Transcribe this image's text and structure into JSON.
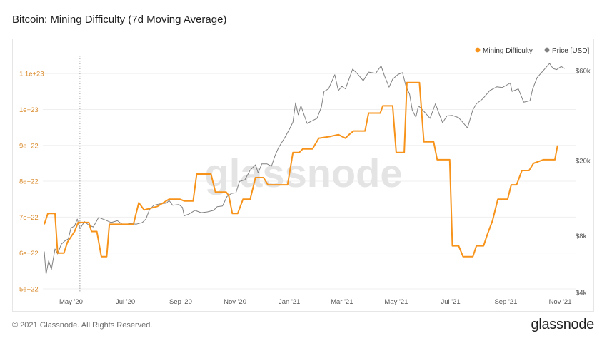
{
  "header": {
    "title": "Bitcoin: Mining Difficulty (7d Moving Average)"
  },
  "footer": {
    "copyright": "© 2021 Glassnode. All Rights Reserved.",
    "logo": "glassnode"
  },
  "watermark": "glassnode",
  "colors": {
    "difficulty": "#f7931a",
    "price": "#808080",
    "left_tick": "#d98a2a"
  },
  "chart_data": {
    "type": "line",
    "title": "Bitcoin: Mining Difficulty (7d Moving Average)",
    "legend": {
      "placement": "top-right",
      "entries": [
        "Mining Difficulty",
        "Price [USD]"
      ]
    },
    "x_axis": {
      "type": "date",
      "range": [
        "2020-04-01",
        "2021-11-15"
      ],
      "tick_labels": [
        {
          "date": "2020-05-01",
          "label": "May '20"
        },
        {
          "date": "2020-07-01",
          "label": "Jul '20"
        },
        {
          "date": "2020-09-01",
          "label": "Sep '20"
        },
        {
          "date": "2020-11-01",
          "label": "Nov '20"
        },
        {
          "date": "2021-01-01",
          "label": "Jan '21"
        },
        {
          "date": "2021-03-01",
          "label": "Mar '21"
        },
        {
          "date": "2021-05-01",
          "label": "May '21"
        },
        {
          "date": "2021-07-01",
          "label": "Jul '21"
        },
        {
          "date": "2021-09-01",
          "label": "Sep '21"
        },
        {
          "date": "2021-11-01",
          "label": "Nov '21"
        }
      ]
    },
    "y_left": {
      "scale": "linear",
      "range": [
        4.9e+22,
        1.15e+23
      ],
      "ticks": [
        5e+22,
        6e+22,
        7e+22,
        8e+22,
        9e+22,
        1e+23,
        1.1e+23
      ],
      "tick_labels": [
        "5e+22",
        "6e+22",
        "7e+22",
        "8e+22",
        "9e+22",
        "1e+23",
        "1.1e+23"
      ]
    },
    "y_right": {
      "scale": "log",
      "range": [
        4000,
        72000
      ],
      "ticks": [
        4000,
        8000,
        20000,
        60000
      ],
      "tick_labels": [
        "$4k",
        "$8k",
        "$20k",
        "$60k"
      ]
    },
    "annotation": {
      "type": "vertical-dotted-line",
      "date": "2020-05-11"
    },
    "series": [
      {
        "name": "Mining Difficulty",
        "axis": "left",
        "step": true,
        "points": [
          [
            "2020-04-01",
            6.8e+22
          ],
          [
            "2020-04-05",
            7.1e+22
          ],
          [
            "2020-04-13",
            7.1e+22
          ],
          [
            "2020-04-16",
            6e+22
          ],
          [
            "2020-04-23",
            6e+22
          ],
          [
            "2020-04-27",
            6.3e+22
          ],
          [
            "2020-05-05",
            6.6e+22
          ],
          [
            "2020-05-09",
            6.85e+22
          ],
          [
            "2020-05-21",
            6.85e+22
          ],
          [
            "2020-05-24",
            6.6e+22
          ],
          [
            "2020-05-30",
            6.6e+22
          ],
          [
            "2020-06-04",
            5.9e+22
          ],
          [
            "2020-06-10",
            5.9e+22
          ],
          [
            "2020-06-13",
            6.8e+22
          ],
          [
            "2020-06-28",
            6.8e+22
          ],
          [
            "2020-07-01",
            6.8e+22
          ],
          [
            "2020-07-10",
            6.8e+22
          ],
          [
            "2020-07-16",
            7.4e+22
          ],
          [
            "2020-07-22",
            7.2e+22
          ],
          [
            "2020-08-06",
            7.3e+22
          ],
          [
            "2020-08-19",
            7.5e+22
          ],
          [
            "2020-08-31",
            7.5e+22
          ],
          [
            "2020-09-05",
            7.45e+22
          ],
          [
            "2020-09-15",
            7.45e+22
          ],
          [
            "2020-09-19",
            8.2e+22
          ],
          [
            "2020-10-05",
            8.2e+22
          ],
          [
            "2020-10-10",
            7.7e+22
          ],
          [
            "2020-10-22",
            7.7e+22
          ],
          [
            "2020-10-25",
            7.6e+22
          ],
          [
            "2020-10-29",
            7.1e+22
          ],
          [
            "2020-11-04",
            7.1e+22
          ],
          [
            "2020-11-10",
            7.5e+22
          ],
          [
            "2020-11-18",
            7.5e+22
          ],
          [
            "2020-11-24",
            8.1e+22
          ],
          [
            "2020-12-03",
            8.1e+22
          ],
          [
            "2020-12-08",
            7.9e+22
          ],
          [
            "2020-12-30",
            7.9e+22
          ],
          [
            "2021-01-05",
            8.8e+22
          ],
          [
            "2021-01-12",
            8.8e+22
          ],
          [
            "2021-01-16",
            8.9e+22
          ],
          [
            "2021-01-27",
            8.9e+22
          ],
          [
            "2021-02-03",
            9.2e+22
          ],
          [
            "2021-02-16",
            9.25e+22
          ],
          [
            "2021-02-25",
            9.3e+22
          ],
          [
            "2021-03-05",
            9.2e+22
          ],
          [
            "2021-03-09",
            9.3e+22
          ],
          [
            "2021-03-14",
            9.4e+22
          ],
          [
            "2021-03-27",
            9.4e+22
          ],
          [
            "2021-03-31",
            9.9e+22
          ],
          [
            "2021-04-13",
            9.9e+22
          ],
          [
            "2021-04-16",
            1.01e+23
          ],
          [
            "2021-04-27",
            1.01e+23
          ],
          [
            "2021-05-01",
            8.8e+22
          ],
          [
            "2021-05-10",
            8.8e+22
          ],
          [
            "2021-05-13",
            1.075e+23
          ],
          [
            "2021-05-27",
            1.075e+23
          ],
          [
            "2021-06-01",
            9.1e+22
          ],
          [
            "2021-06-12",
            9.1e+22
          ],
          [
            "2021-06-16",
            8.6e+22
          ],
          [
            "2021-06-30",
            8.6e+22
          ],
          [
            "2021-07-03",
            6.2e+22
          ],
          [
            "2021-07-10",
            6.2e+22
          ],
          [
            "2021-07-15",
            5.9e+22
          ],
          [
            "2021-07-26",
            5.9e+22
          ],
          [
            "2021-07-30",
            6.2e+22
          ],
          [
            "2021-08-07",
            6.2e+22
          ],
          [
            "2021-08-11",
            6.5e+22
          ],
          [
            "2021-08-17",
            6.9e+22
          ],
          [
            "2021-08-23",
            7.5e+22
          ],
          [
            "2021-09-03",
            7.5e+22
          ],
          [
            "2021-09-07",
            7.9e+22
          ],
          [
            "2021-09-13",
            7.9e+22
          ],
          [
            "2021-09-19",
            8.3e+22
          ],
          [
            "2021-09-27",
            8.3e+22
          ],
          [
            "2021-10-02",
            8.5e+22
          ],
          [
            "2021-10-13",
            8.6e+22
          ],
          [
            "2021-10-26",
            8.6e+22
          ],
          [
            "2021-10-29",
            9e+22
          ]
        ]
      },
      {
        "name": "Price [USD]",
        "axis": "right",
        "points": [
          [
            "2020-04-01",
            6600
          ],
          [
            "2020-04-03",
            5000
          ],
          [
            "2020-04-06",
            5900
          ],
          [
            "2020-04-09",
            5300
          ],
          [
            "2020-04-13",
            6800
          ],
          [
            "2020-04-16",
            6400
          ],
          [
            "2020-04-20",
            7200
          ],
          [
            "2020-04-24",
            7500
          ],
          [
            "2020-04-28",
            7700
          ],
          [
            "2020-05-01",
            8800
          ],
          [
            "2020-05-05",
            9000
          ],
          [
            "2020-05-08",
            9800
          ],
          [
            "2020-05-11",
            8700
          ],
          [
            "2020-05-16",
            9500
          ],
          [
            "2020-05-21",
            9100
          ],
          [
            "2020-05-26",
            8900
          ],
          [
            "2020-06-01",
            10000
          ],
          [
            "2020-06-08",
            9700
          ],
          [
            "2020-06-15",
            9400
          ],
          [
            "2020-06-22",
            9600
          ],
          [
            "2020-06-29",
            9100
          ],
          [
            "2020-07-06",
            9300
          ],
          [
            "2020-07-13",
            9200
          ],
          [
            "2020-07-20",
            9400
          ],
          [
            "2020-07-24",
            9800
          ],
          [
            "2020-07-28",
            11000
          ],
          [
            "2020-08-02",
            11600
          ],
          [
            "2020-08-09",
            11800
          ],
          [
            "2020-08-16",
            11900
          ],
          [
            "2020-08-19",
            12300
          ],
          [
            "2020-08-23",
            11600
          ],
          [
            "2020-08-30",
            11700
          ],
          [
            "2020-09-03",
            11300
          ],
          [
            "2020-09-05",
            10200
          ],
          [
            "2020-09-10",
            10400
          ],
          [
            "2020-09-17",
            10900
          ],
          [
            "2020-09-24",
            10600
          ],
          [
            "2020-10-01",
            10700
          ],
          [
            "2020-10-08",
            10900
          ],
          [
            "2020-10-12",
            11400
          ],
          [
            "2020-10-18",
            11500
          ],
          [
            "2020-10-23",
            12900
          ],
          [
            "2020-10-28",
            13400
          ],
          [
            "2020-11-02",
            13500
          ],
          [
            "2020-11-06",
            15500
          ],
          [
            "2020-11-12",
            15800
          ],
          [
            "2020-11-18",
            17800
          ],
          [
            "2020-11-24",
            19000
          ],
          [
            "2020-11-27",
            17200
          ],
          [
            "2020-12-01",
            19200
          ],
          [
            "2020-12-07",
            19200
          ],
          [
            "2020-12-12",
            18700
          ],
          [
            "2020-12-16",
            21300
          ],
          [
            "2020-12-20",
            23500
          ],
          [
            "2020-12-27",
            26500
          ],
          [
            "2021-01-01",
            29300
          ],
          [
            "2021-01-05",
            32000
          ],
          [
            "2021-01-08",
            40500
          ],
          [
            "2021-01-11",
            35000
          ],
          [
            "2021-01-14",
            39000
          ],
          [
            "2021-01-21",
            31500
          ],
          [
            "2021-01-26",
            32400
          ],
          [
            "2021-02-01",
            33500
          ],
          [
            "2021-02-06",
            38500
          ],
          [
            "2021-02-09",
            46500
          ],
          [
            "2021-02-14",
            48000
          ],
          [
            "2021-02-21",
            57000
          ],
          [
            "2021-02-25",
            47000
          ],
          [
            "2021-03-01",
            49500
          ],
          [
            "2021-03-05",
            48000
          ],
          [
            "2021-03-13",
            61000
          ],
          [
            "2021-03-18",
            58000
          ],
          [
            "2021-03-25",
            53000
          ],
          [
            "2021-03-31",
            58900
          ],
          [
            "2021-04-08",
            58000
          ],
          [
            "2021-04-14",
            63500
          ],
          [
            "2021-04-18",
            56000
          ],
          [
            "2021-04-23",
            49000
          ],
          [
            "2021-04-27",
            54000
          ],
          [
            "2021-05-03",
            57200
          ],
          [
            "2021-05-08",
            58500
          ],
          [
            "2021-05-12",
            49500
          ],
          [
            "2021-05-16",
            45000
          ],
          [
            "2021-05-19",
            37000
          ],
          [
            "2021-05-23",
            34000
          ],
          [
            "2021-05-26",
            39000
          ],
          [
            "2021-06-01",
            36500
          ],
          [
            "2021-06-08",
            33500
          ],
          [
            "2021-06-14",
            40000
          ],
          [
            "2021-06-18",
            35500
          ],
          [
            "2021-06-22",
            31800
          ],
          [
            "2021-06-27",
            34500
          ],
          [
            "2021-07-03",
            34700
          ],
          [
            "2021-07-10",
            33800
          ],
          [
            "2021-07-15",
            31800
          ],
          [
            "2021-07-20",
            29800
          ],
          [
            "2021-07-26",
            37200
          ],
          [
            "2021-07-30",
            40000
          ],
          [
            "2021-08-06",
            42500
          ],
          [
            "2021-08-14",
            47000
          ],
          [
            "2021-08-22",
            49200
          ],
          [
            "2021-08-28",
            48800
          ],
          [
            "2021-09-06",
            51500
          ],
          [
            "2021-09-08",
            46500
          ],
          [
            "2021-09-15",
            48000
          ],
          [
            "2021-09-21",
            40800
          ],
          [
            "2021-09-28",
            41500
          ],
          [
            "2021-10-01",
            47800
          ],
          [
            "2021-10-06",
            55000
          ],
          [
            "2021-10-15",
            61500
          ],
          [
            "2021-10-20",
            65500
          ],
          [
            "2021-10-24",
            61500
          ],
          [
            "2021-10-28",
            60700
          ],
          [
            "2021-11-02",
            63000
          ],
          [
            "2021-11-06",
            61500
          ]
        ]
      }
    ]
  }
}
